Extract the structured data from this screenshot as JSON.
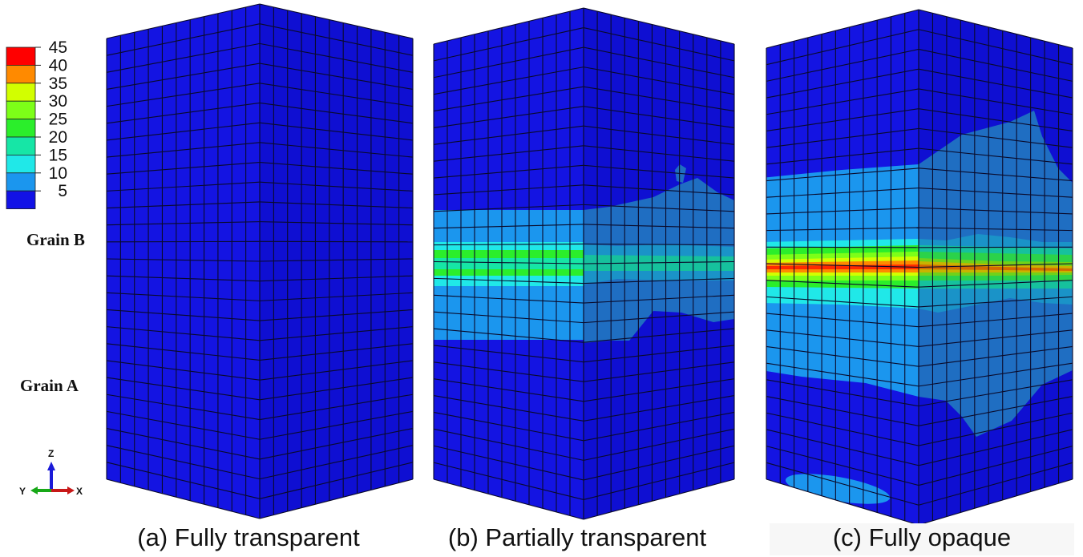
{
  "figure": {
    "panels": [
      {
        "label": "(a) Fully transparent"
      },
      {
        "label": "(b) Partially transparent"
      },
      {
        "label": "(c) Fully opaque"
      }
    ],
    "legend": {
      "ticks": [
        "45",
        "40",
        "35",
        "30",
        "25",
        "20",
        "15",
        "10",
        "5"
      ],
      "colors": [
        "#ff0000",
        "#ff8a00",
        "#d2ff00",
        "#7dff18",
        "#2bee2b",
        "#16e6a6",
        "#20e8e8",
        "#1b96ee",
        "#1212e6"
      ]
    },
    "grain_labels": {
      "top": "Grain B",
      "bottom": "Grain A"
    },
    "triad": {
      "z": "Z",
      "y": "Y",
      "x": "X"
    }
  }
}
